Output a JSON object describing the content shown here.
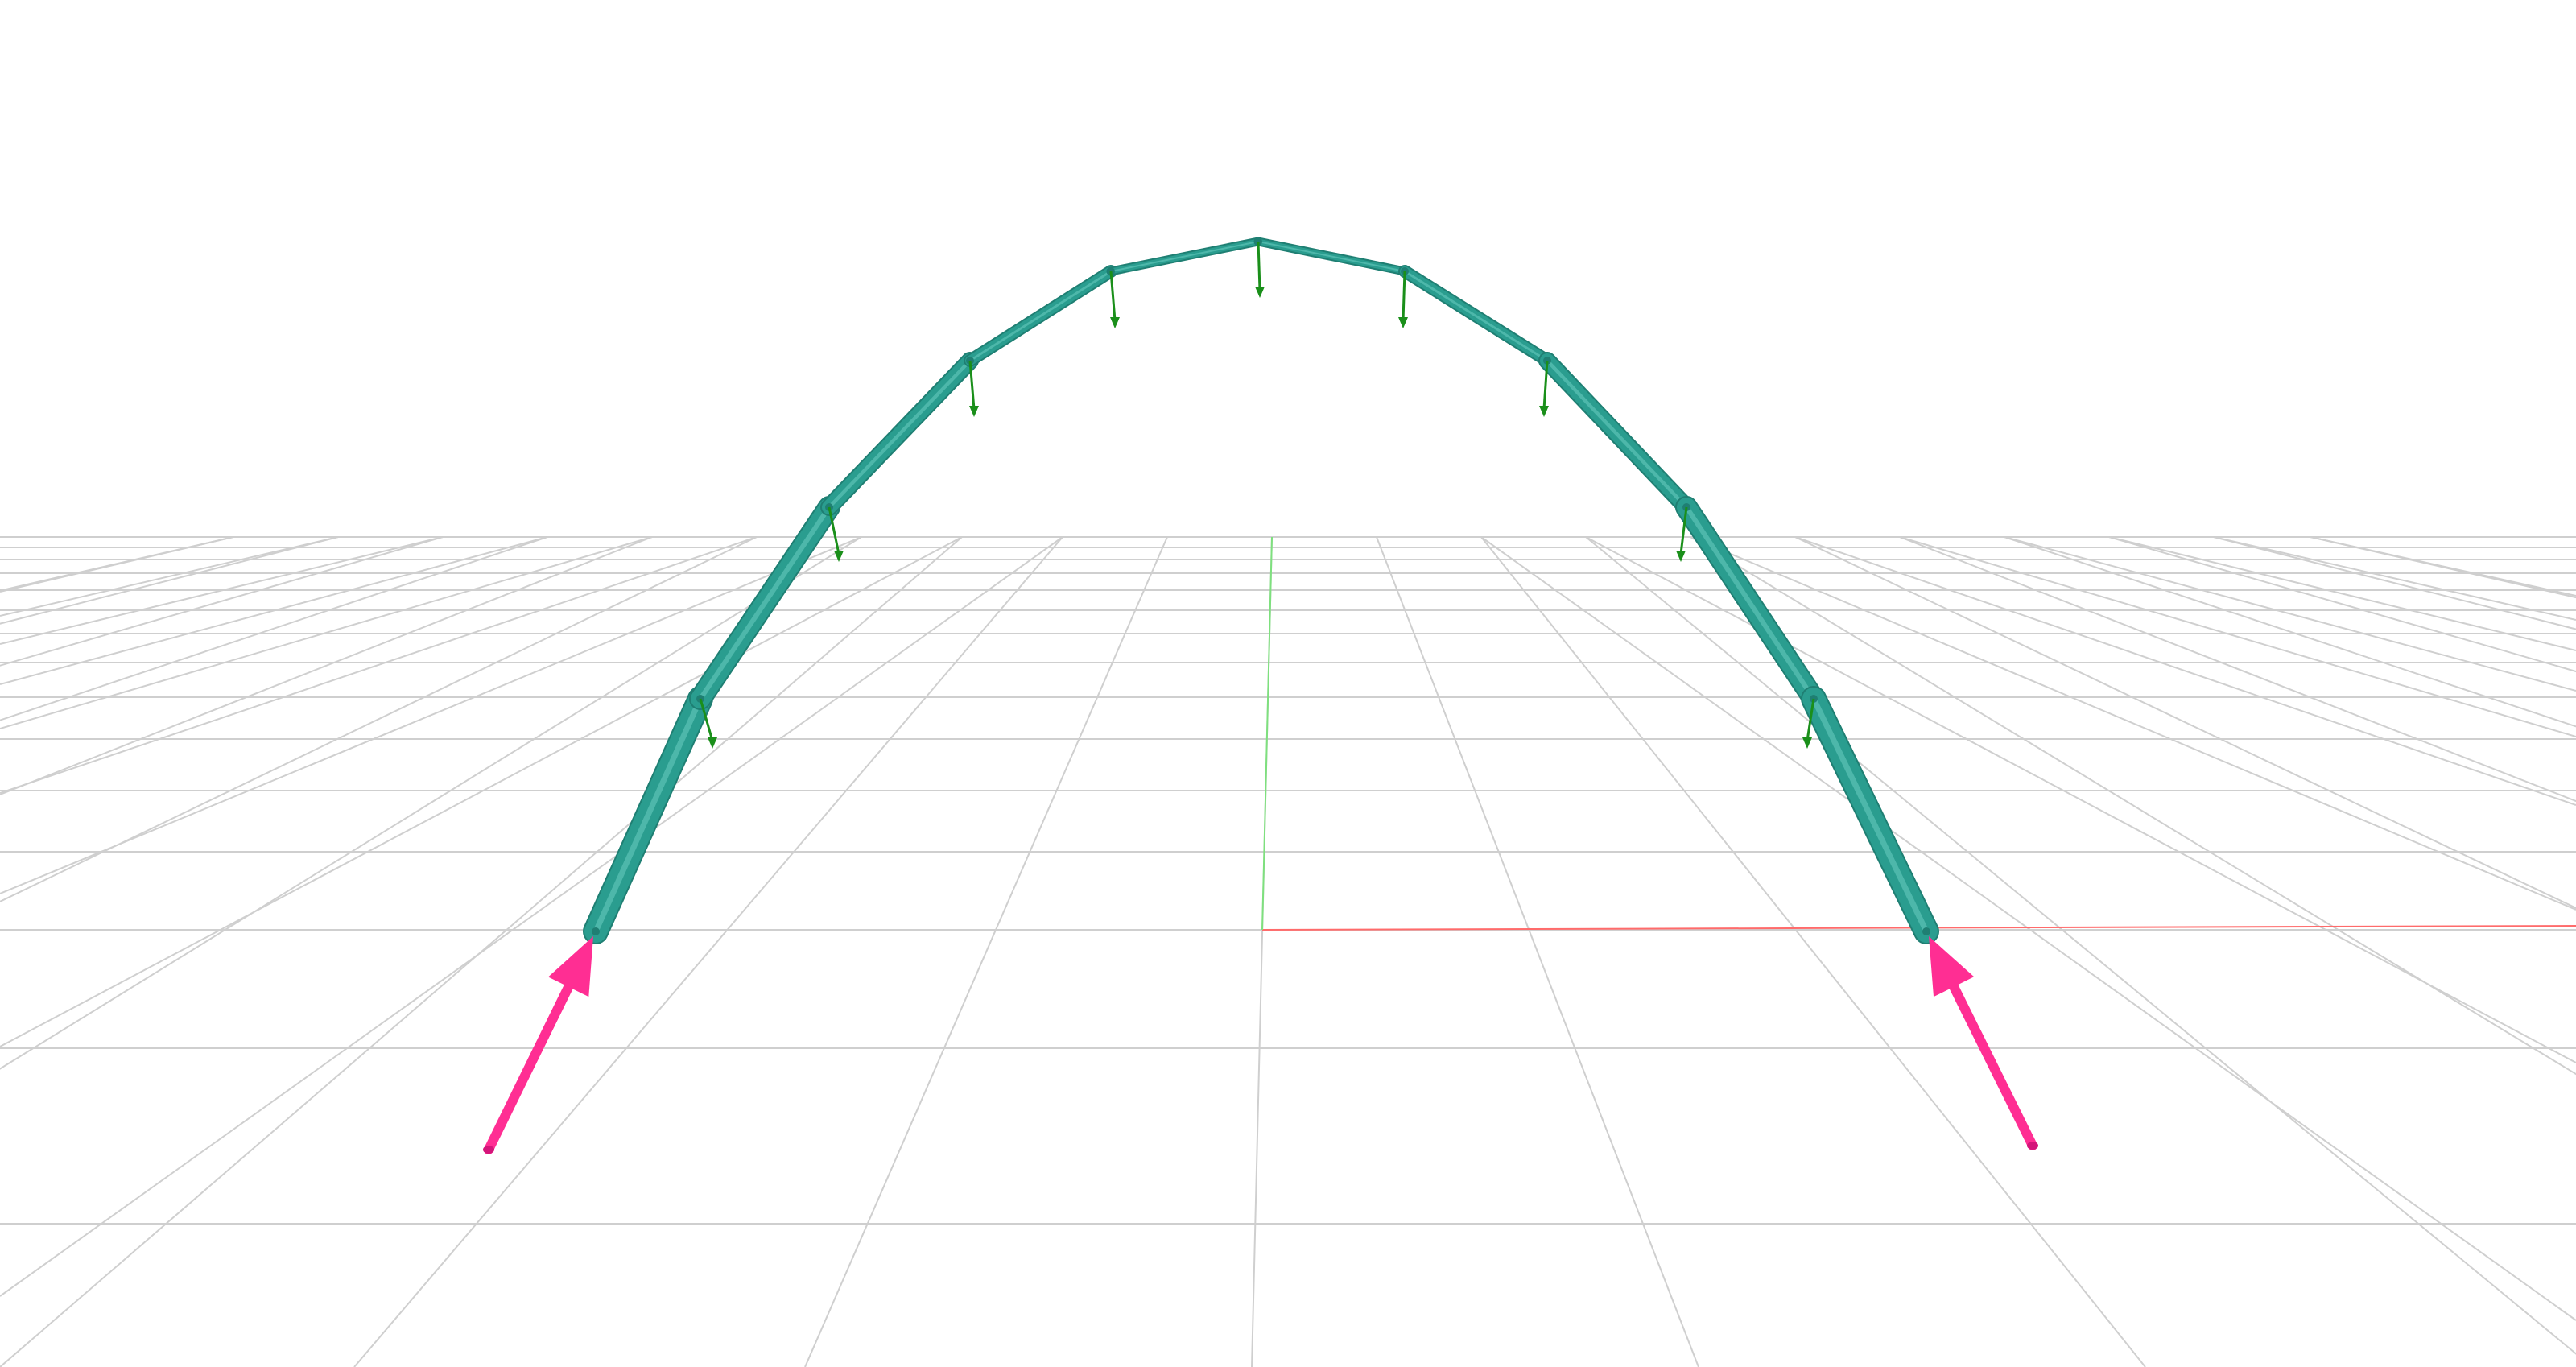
{
  "scene": {
    "background": "#ffffff",
    "colors": {
      "grid": "#cfcfcf",
      "x_axis": "#ff6b6b",
      "y_axis": "#7ee07e",
      "arch_member": "#2a9d8f",
      "arch_member_dark": "#1f7f73",
      "load_arrow": "#1a8f1a",
      "reaction_arrow": "#ff2e93"
    },
    "arch": {
      "node_count": 11,
      "segment_count": 10
    },
    "loads": {
      "count": 9,
      "direction": "down"
    },
    "reactions": {
      "count": 2,
      "supports": [
        "left",
        "right"
      ]
    },
    "axes_shown": [
      "x",
      "y"
    ],
    "grid": true
  }
}
